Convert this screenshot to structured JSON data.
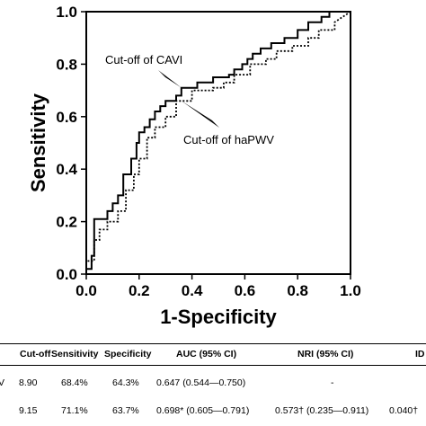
{
  "chart_data": {
    "type": "line",
    "xlabel": "1-Specificity",
    "ylabel": "Sensitivity",
    "xlim": [
      0,
      1
    ],
    "ylim": [
      0,
      1
    ],
    "x_ticks": [
      "0.0",
      "0.2",
      "0.4",
      "0.6",
      "0.8",
      "1.0"
    ],
    "y_ticks": [
      "0.0",
      "0.2",
      "0.4",
      "0.6",
      "0.8",
      "1.0"
    ],
    "series": [
      {
        "style": "solid",
        "x": [
          0,
          0,
          0.02,
          0.02,
          0.03,
          0.03,
          0.08,
          0.08,
          0.1,
          0.1,
          0.12,
          0.12,
          0.14,
          0.14,
          0.17,
          0.17,
          0.19,
          0.19,
          0.2,
          0.2,
          0.22,
          0.22,
          0.24,
          0.24,
          0.26,
          0.26,
          0.28,
          0.28,
          0.3,
          0.3,
          0.34,
          0.34,
          0.36,
          0.36,
          0.42,
          0.42,
          0.48,
          0.48,
          0.54,
          0.54,
          0.56,
          0.56,
          0.59,
          0.59,
          0.61,
          0.61,
          0.63,
          0.63,
          0.66,
          0.66,
          0.7,
          0.7,
          0.75,
          0.75,
          0.8,
          0.8,
          0.84,
          0.84,
          0.89,
          0.89,
          0.92,
          0.92,
          1.0
        ],
        "y": [
          0,
          0.02,
          0.02,
          0.07,
          0.07,
          0.21,
          0.21,
          0.24,
          0.24,
          0.27,
          0.27,
          0.3,
          0.3,
          0.38,
          0.38,
          0.44,
          0.44,
          0.5,
          0.5,
          0.54,
          0.54,
          0.56,
          0.56,
          0.59,
          0.59,
          0.62,
          0.62,
          0.64,
          0.64,
          0.66,
          0.66,
          0.68,
          0.68,
          0.71,
          0.71,
          0.73,
          0.73,
          0.75,
          0.75,
          0.76,
          0.76,
          0.78,
          0.78,
          0.8,
          0.8,
          0.82,
          0.82,
          0.84,
          0.84,
          0.86,
          0.86,
          0.88,
          0.88,
          0.9,
          0.9,
          0.93,
          0.93,
          0.96,
          0.96,
          0.98,
          0.98,
          1.0,
          1.0
        ]
      },
      {
        "style": "dotted",
        "x": [
          0,
          0,
          0.03,
          0.03,
          0.05,
          0.05,
          0.08,
          0.08,
          0.12,
          0.12,
          0.15,
          0.15,
          0.18,
          0.18,
          0.2,
          0.2,
          0.23,
          0.23,
          0.26,
          0.26,
          0.3,
          0.3,
          0.34,
          0.34,
          0.4,
          0.4,
          0.48,
          0.48,
          0.52,
          0.52,
          0.56,
          0.56,
          0.62,
          0.62,
          0.68,
          0.68,
          0.72,
          0.72,
          0.78,
          0.78,
          0.84,
          0.84,
          0.88,
          0.88,
          0.94,
          0.94,
          1.0
        ],
        "y": [
          0,
          0.05,
          0.05,
          0.13,
          0.13,
          0.17,
          0.17,
          0.2,
          0.2,
          0.24,
          0.24,
          0.32,
          0.32,
          0.38,
          0.38,
          0.44,
          0.44,
          0.52,
          0.52,
          0.56,
          0.56,
          0.6,
          0.6,
          0.66,
          0.66,
          0.7,
          0.7,
          0.71,
          0.71,
          0.73,
          0.73,
          0.76,
          0.76,
          0.8,
          0.8,
          0.82,
          0.82,
          0.85,
          0.85,
          0.87,
          0.87,
          0.9,
          0.9,
          0.93,
          0.93,
          0.96,
          1.0
        ]
      }
    ],
    "annotations": [
      {
        "text": "Cut-off of CAVI",
        "point": [
          0.36,
          0.71
        ]
      },
      {
        "text": "Cut-off of haPWV",
        "point": [
          0.36,
          0.66
        ]
      }
    ]
  },
  "table": {
    "headers": [
      "Cut-off",
      "Sensitivity",
      "Specificity",
      "AUC (95% CI)",
      "NRI (95% CI)",
      "ID"
    ],
    "rows": [
      {
        "row_label": "V",
        "cutoff": "8.90",
        "sensitivity": "68.4%",
        "specificity": "64.3%",
        "auc": "0.647 (0.544—0.750)",
        "nri": "-",
        "idi": ""
      },
      {
        "row_label": "",
        "cutoff": "9.15",
        "sensitivity": "71.1%",
        "specificity": "63.7%",
        "auc": "0.698* (0.605—0.791)",
        "nri": "0.573† (0.235—0.911)",
        "idi": "0.040†"
      }
    ]
  }
}
